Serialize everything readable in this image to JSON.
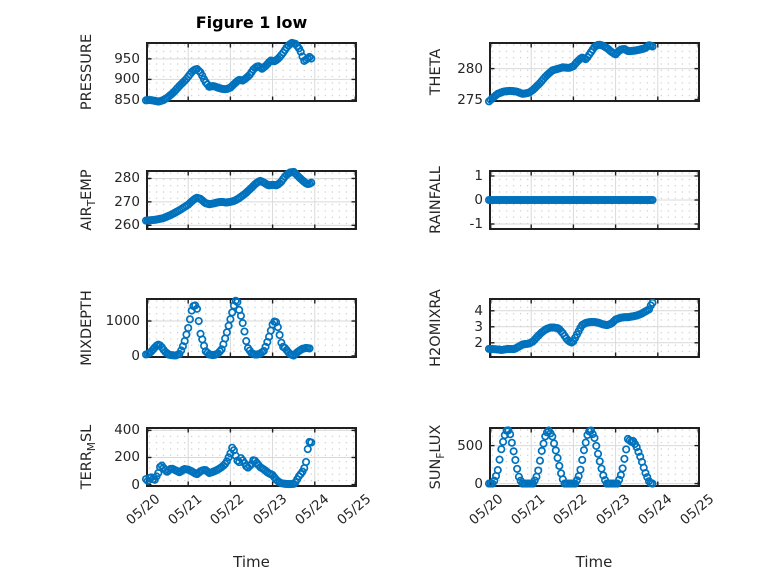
{
  "figure": {
    "title": "Figure 1 low",
    "xlabel": "Time"
  },
  "colors": {
    "series": "#0072BD",
    "axis": "#1f1f1f",
    "grid_major": "#d9d9d9",
    "grid_minor_dots": "#c9c9c9",
    "text": "#262626"
  },
  "xticks": [
    "05/20",
    "05/21",
    "05/22",
    "05/23",
    "05/24",
    "05/25"
  ],
  "chart_data": [
    {
      "name": "pressure",
      "type": "scatter",
      "marker": "open-circle",
      "ylabel_pre": "PRESSURE",
      "ylabel_sub": "",
      "ylabel_post": "",
      "yticks": [
        850,
        900,
        950
      ],
      "ylim": [
        845,
        991
      ],
      "xlim_days": [
        0,
        5
      ],
      "points": [
        [
          0,
          849
        ],
        [
          0.1,
          850
        ],
        [
          0.2,
          848
        ],
        [
          0.3,
          846
        ],
        [
          0.4,
          849
        ],
        [
          0.5,
          855
        ],
        [
          0.65,
          868
        ],
        [
          0.8,
          885
        ],
        [
          0.95,
          900
        ],
        [
          1.1,
          920
        ],
        [
          1.2,
          926
        ],
        [
          1.3,
          916
        ],
        [
          1.4,
          895
        ],
        [
          1.5,
          882
        ],
        [
          1.6,
          884
        ],
        [
          1.7,
          880
        ],
        [
          1.8,
          877
        ],
        [
          1.9,
          876
        ],
        [
          2,
          880
        ],
        [
          2.1,
          890
        ],
        [
          2.2,
          899
        ],
        [
          2.3,
          897
        ],
        [
          2.45,
          910
        ],
        [
          2.55,
          925
        ],
        [
          2.65,
          933
        ],
        [
          2.75,
          926
        ],
        [
          2.85,
          934
        ],
        [
          2.95,
          946
        ],
        [
          3.05,
          944
        ],
        [
          3.15,
          952
        ],
        [
          3.25,
          965
        ],
        [
          3.35,
          980
        ],
        [
          3.45,
          989
        ],
        [
          3.55,
          986
        ],
        [
          3.65,
          972
        ],
        [
          3.7,
          958
        ],
        [
          3.75,
          945
        ],
        [
          3.82,
          950
        ],
        [
          3.88,
          955
        ],
        [
          3.95,
          947
        ]
      ]
    },
    {
      "name": "theta",
      "type": "scatter",
      "marker": "open-circle",
      "ylabel_pre": "THETA",
      "ylabel_sub": "",
      "ylabel_post": "",
      "yticks": [
        275,
        280
      ],
      "ylim": [
        274.6,
        284.3
      ],
      "xlim_days": [
        0,
        5
      ],
      "points": [
        [
          0,
          274.7
        ],
        [
          0.08,
          275.2
        ],
        [
          0.2,
          275.9
        ],
        [
          0.35,
          276.3
        ],
        [
          0.5,
          276.4
        ],
        [
          0.65,
          276.3
        ],
        [
          0.8,
          275.9
        ],
        [
          0.95,
          276.1
        ],
        [
          1.05,
          276.6
        ],
        [
          1.2,
          277.6
        ],
        [
          1.35,
          278.8
        ],
        [
          1.5,
          279.7
        ],
        [
          1.6,
          279.9
        ],
        [
          1.75,
          280.2
        ],
        [
          1.9,
          280.1
        ],
        [
          2,
          280.4
        ],
        [
          2.1,
          281.2
        ],
        [
          2.2,
          281.8
        ],
        [
          2.3,
          281.5
        ],
        [
          2.4,
          282.5
        ],
        [
          2.5,
          283.5
        ],
        [
          2.6,
          283.9
        ],
        [
          2.7,
          283.7
        ],
        [
          2.8,
          283.3
        ],
        [
          2.9,
          282.7
        ],
        [
          3,
          282.3
        ],
        [
          3.1,
          283
        ],
        [
          3.2,
          283.2
        ],
        [
          3.3,
          282.8
        ],
        [
          3.45,
          282.9
        ],
        [
          3.6,
          283.1
        ],
        [
          3.7,
          283.3
        ],
        [
          3.8,
          283.8
        ],
        [
          3.9,
          283.5
        ]
      ]
    },
    {
      "name": "air_temp",
      "type": "scatter",
      "marker": "open-circle",
      "ylabel_pre": "AIR",
      "ylabel_sub": "T",
      "ylabel_post": "EMP",
      "yticks": [
        260,
        270,
        280
      ],
      "ylim": [
        258,
        283.6
      ],
      "xlim_days": [
        0,
        5
      ],
      "points": [
        [
          0,
          262
        ],
        [
          0.2,
          262.3
        ],
        [
          0.4,
          263
        ],
        [
          0.6,
          264.5
        ],
        [
          0.8,
          266.5
        ],
        [
          1,
          268.8
        ],
        [
          1.1,
          270.5
        ],
        [
          1.2,
          271.8
        ],
        [
          1.3,
          271.2
        ],
        [
          1.4,
          269.5
        ],
        [
          1.5,
          269
        ],
        [
          1.6,
          269.3
        ],
        [
          1.7,
          269.8
        ],
        [
          1.8,
          270
        ],
        [
          1.9,
          269.7
        ],
        [
          2,
          270
        ],
        [
          2.1,
          270.5
        ],
        [
          2.2,
          271.5
        ],
        [
          2.35,
          273.5
        ],
        [
          2.5,
          276
        ],
        [
          2.6,
          277.8
        ],
        [
          2.7,
          279
        ],
        [
          2.8,
          278.2
        ],
        [
          2.9,
          277
        ],
        [
          3,
          277.3
        ],
        [
          3.1,
          277
        ],
        [
          3.2,
          278.5
        ],
        [
          3.3,
          281
        ],
        [
          3.4,
          282.5
        ],
        [
          3.5,
          282.8
        ],
        [
          3.6,
          281
        ],
        [
          3.7,
          279.3
        ],
        [
          3.8,
          277.8
        ],
        [
          3.85,
          277.5
        ],
        [
          3.92,
          278.2
        ]
      ]
    },
    {
      "name": "rainfall",
      "type": "scatter",
      "marker": "open-circle",
      "ylabel_pre": "RAINFALL",
      "ylabel_sub": "",
      "ylabel_post": "",
      "yticks": [
        -1,
        0,
        1
      ],
      "ylim": [
        -1.25,
        1.25
      ],
      "xlim_days": [
        0,
        5
      ],
      "points": [
        [
          0,
          0
        ],
        [
          3.9,
          0
        ]
      ]
    },
    {
      "name": "mixdepth",
      "type": "scatter",
      "marker": "open-circle",
      "ylabel_pre": "MIXDEPTH",
      "ylabel_sub": "",
      "ylabel_post": "",
      "yticks": [
        0,
        1000
      ],
      "ylim": [
        -60,
        1660
      ],
      "xlim_days": [
        0,
        5
      ],
      "points": [
        [
          0,
          40
        ],
        [
          0.1,
          90
        ],
        [
          0.2,
          230
        ],
        [
          0.28,
          330
        ],
        [
          0.35,
          290
        ],
        [
          0.45,
          120
        ],
        [
          0.55,
          30
        ],
        [
          0.7,
          10
        ],
        [
          0.8,
          60
        ],
        [
          0.9,
          350
        ],
        [
          1,
          800
        ],
        [
          1.05,
          1100
        ],
        [
          1.1,
          1400
        ],
        [
          1.15,
          1460
        ],
        [
          1.2,
          1420
        ],
        [
          1.25,
          1000
        ],
        [
          1.3,
          560
        ],
        [
          1.35,
          430
        ],
        [
          1.4,
          150
        ],
        [
          1.5,
          40
        ],
        [
          1.6,
          20
        ],
        [
          1.7,
          60
        ],
        [
          1.8,
          200
        ],
        [
          1.9,
          600
        ],
        [
          2,
          1050
        ],
        [
          2.1,
          1520
        ],
        [
          2.15,
          1640
        ],
        [
          2.2,
          1350
        ],
        [
          2.25,
          1150
        ],
        [
          2.3,
          900
        ],
        [
          2.35,
          600
        ],
        [
          2.4,
          250
        ],
        [
          2.5,
          80
        ],
        [
          2.6,
          30
        ],
        [
          2.7,
          60
        ],
        [
          2.8,
          150
        ],
        [
          2.9,
          480
        ],
        [
          3,
          900
        ],
        [
          3.05,
          1000
        ],
        [
          3.1,
          950
        ],
        [
          3.15,
          700
        ],
        [
          3.2,
          400
        ],
        [
          3.25,
          260
        ],
        [
          3.3,
          220
        ],
        [
          3.4,
          60
        ],
        [
          3.5,
          10
        ],
        [
          3.6,
          120
        ],
        [
          3.7,
          200
        ],
        [
          3.8,
          230
        ],
        [
          3.9,
          210
        ]
      ]
    },
    {
      "name": "h2omixra",
      "type": "scatter",
      "marker": "open-circle",
      "ylabel_pre": "H2OMIXRA",
      "ylabel_sub": "",
      "ylabel_post": "",
      "yticks": [
        2,
        3,
        4
      ],
      "ylim": [
        1.05,
        4.8
      ],
      "xlim_days": [
        0,
        5
      ],
      "points": [
        [
          0,
          1.62
        ],
        [
          0.15,
          1.6
        ],
        [
          0.3,
          1.55
        ],
        [
          0.45,
          1.62
        ],
        [
          0.6,
          1.6
        ],
        [
          0.7,
          1.75
        ],
        [
          0.8,
          1.9
        ],
        [
          0.95,
          1.95
        ],
        [
          1.05,
          2.1
        ],
        [
          1.15,
          2.4
        ],
        [
          1.25,
          2.65
        ],
        [
          1.35,
          2.85
        ],
        [
          1.45,
          2.95
        ],
        [
          1.55,
          2.95
        ],
        [
          1.65,
          2.9
        ],
        [
          1.75,
          2.6
        ],
        [
          1.85,
          2.2
        ],
        [
          1.95,
          2
        ],
        [
          2,
          2.1
        ],
        [
          2.1,
          2.6
        ],
        [
          2.2,
          3.1
        ],
        [
          2.3,
          3.25
        ],
        [
          2.4,
          3.3
        ],
        [
          2.5,
          3.3
        ],
        [
          2.6,
          3.25
        ],
        [
          2.7,
          3.15
        ],
        [
          2.8,
          3.1
        ],
        [
          2.9,
          3.2
        ],
        [
          3,
          3.45
        ],
        [
          3.1,
          3.55
        ],
        [
          3.2,
          3.6
        ],
        [
          3.3,
          3.6
        ],
        [
          3.4,
          3.65
        ],
        [
          3.5,
          3.7
        ],
        [
          3.6,
          3.8
        ],
        [
          3.7,
          3.95
        ],
        [
          3.8,
          4.1
        ],
        [
          3.85,
          4.45
        ],
        [
          3.9,
          4.55
        ]
      ]
    },
    {
      "name": "terr_msl",
      "type": "scatter",
      "marker": "open-circle",
      "ylabel_pre": "TERR",
      "ylabel_sub": "M",
      "ylabel_post": "SL",
      "yticks": [
        0,
        200,
        400
      ],
      "ylim": [
        -18,
        425
      ],
      "xlim_days": [
        0,
        5
      ],
      "points": [
        [
          0,
          40
        ],
        [
          0.05,
          25
        ],
        [
          0.1,
          60
        ],
        [
          0.15,
          45
        ],
        [
          0.2,
          30
        ],
        [
          0.3,
          90
        ],
        [
          0.35,
          150
        ],
        [
          0.4,
          130
        ],
        [
          0.45,
          110
        ],
        [
          0.5,
          95
        ],
        [
          0.6,
          120
        ],
        [
          0.7,
          105
        ],
        [
          0.8,
          90
        ],
        [
          0.9,
          115
        ],
        [
          1,
          110
        ],
        [
          1.1,
          95
        ],
        [
          1.2,
          75
        ],
        [
          1.3,
          100
        ],
        [
          1.4,
          110
        ],
        [
          1.5,
          85
        ],
        [
          1.6,
          95
        ],
        [
          1.7,
          110
        ],
        [
          1.8,
          130
        ],
        [
          1.9,
          160
        ],
        [
          1.95,
          195
        ],
        [
          2,
          230
        ],
        [
          2.05,
          280
        ],
        [
          2.1,
          240
        ],
        [
          2.15,
          185
        ],
        [
          2.2,
          160
        ],
        [
          2.25,
          195
        ],
        [
          2.3,
          175
        ],
        [
          2.35,
          150
        ],
        [
          2.4,
          120
        ],
        [
          2.5,
          150
        ],
        [
          2.55,
          185
        ],
        [
          2.6,
          170
        ],
        [
          2.65,
          150
        ],
        [
          2.7,
          130
        ],
        [
          2.8,
          110
        ],
        [
          2.9,
          85
        ],
        [
          3,
          70
        ],
        [
          3.05,
          50
        ],
        [
          3.1,
          30
        ],
        [
          3.2,
          10
        ],
        [
          3.3,
          5
        ],
        [
          3.4,
          3
        ],
        [
          3.5,
          5
        ],
        [
          3.55,
          20
        ],
        [
          3.62,
          60
        ],
        [
          3.7,
          90
        ],
        [
          3.78,
          140
        ],
        [
          3.85,
          300
        ],
        [
          3.9,
          330
        ],
        [
          3.93,
          295
        ]
      ]
    },
    {
      "name": "sun_flux",
      "type": "scatter",
      "marker": "open-circle",
      "ylabel_pre": "SUN",
      "ylabel_sub": "F",
      "ylabel_post": "LUX",
      "yticks": [
        0,
        500
      ],
      "ylim": [
        -45,
        745
      ],
      "xlim_days": [
        0,
        5
      ],
      "points": [
        [
          0,
          0
        ],
        [
          0.1,
          0
        ],
        [
          0.2,
          150
        ],
        [
          0.3,
          480
        ],
        [
          0.4,
          690
        ],
        [
          0.45,
          710
        ],
        [
          0.5,
          650
        ],
        [
          0.6,
          380
        ],
        [
          0.7,
          100
        ],
        [
          0.78,
          0
        ],
        [
          1.05,
          0
        ],
        [
          1.15,
          120
        ],
        [
          1.25,
          430
        ],
        [
          1.35,
          660
        ],
        [
          1.42,
          700
        ],
        [
          1.5,
          620
        ],
        [
          1.6,
          400
        ],
        [
          1.7,
          150
        ],
        [
          1.78,
          0
        ],
        [
          2.05,
          0
        ],
        [
          2.15,
          130
        ],
        [
          2.25,
          440
        ],
        [
          2.35,
          680
        ],
        [
          2.42,
          700
        ],
        [
          2.5,
          600
        ],
        [
          2.6,
          350
        ],
        [
          2.7,
          120
        ],
        [
          2.78,
          0
        ],
        [
          3.05,
          0
        ],
        [
          3.15,
          150
        ],
        [
          3.25,
          450
        ],
        [
          3.3,
          615
        ],
        [
          3.35,
          545
        ],
        [
          3.42,
          560
        ],
        [
          3.5,
          480
        ],
        [
          3.6,
          330
        ],
        [
          3.7,
          150
        ],
        [
          3.8,
          20
        ],
        [
          3.85,
          0
        ],
        [
          3.9,
          0
        ]
      ]
    }
  ]
}
